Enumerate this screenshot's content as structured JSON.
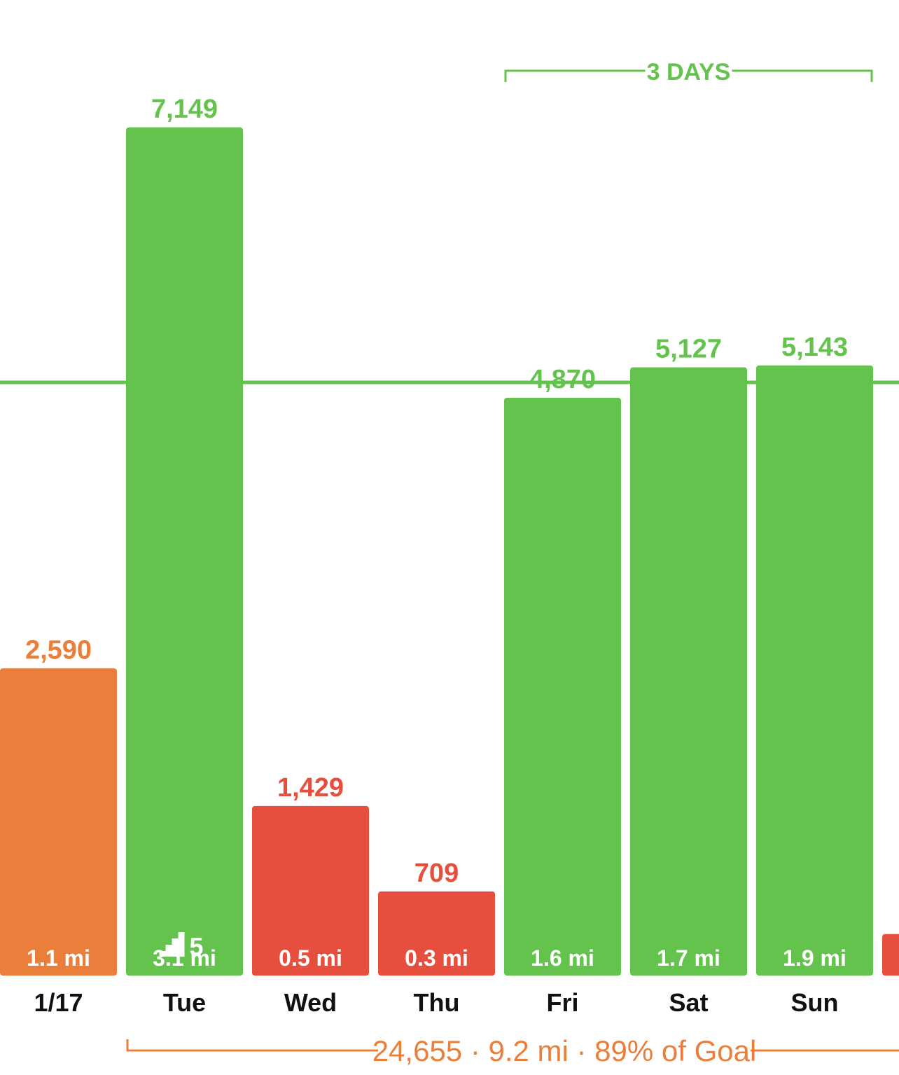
{
  "colors": {
    "green": "#63c34d",
    "orange": "#ea7f3b",
    "red": "#e64e3d",
    "goal_line": "#63c34d",
    "day_label": "#111111"
  },
  "streak": {
    "label": "3 DAYS",
    "from_index": 4,
    "to_index": 6
  },
  "summary": {
    "text": "24,655 · 9.2 mi · 89% of Goal"
  },
  "chart_data": {
    "type": "bar",
    "title": "",
    "xlabel": "",
    "ylabel": "",
    "ylim": [
      0,
      7800
    ],
    "goal": 5000,
    "categories": [
      "1/17",
      "Tue",
      "Wed",
      "Thu",
      "Fri",
      "Sat",
      "Sun"
    ],
    "values": [
      2590,
      7149,
      1429,
      709,
      4870,
      5127,
      5143
    ],
    "value_labels": [
      "2,590",
      "7,149",
      "1,429",
      "709",
      "4,870",
      "5,127",
      "5,143"
    ],
    "distances": [
      "1.1 mi",
      "3.1 mi",
      "0.5 mi",
      "0.3 mi",
      "1.6 mi",
      "1.7 mi",
      "1.9 mi"
    ],
    "status": [
      "orange",
      "green",
      "red",
      "red",
      "green",
      "green",
      "green"
    ],
    "flights": [
      null,
      "5",
      null,
      null,
      null,
      null,
      null
    ],
    "partial_next_bar": {
      "status": "red",
      "value": 350
    }
  }
}
